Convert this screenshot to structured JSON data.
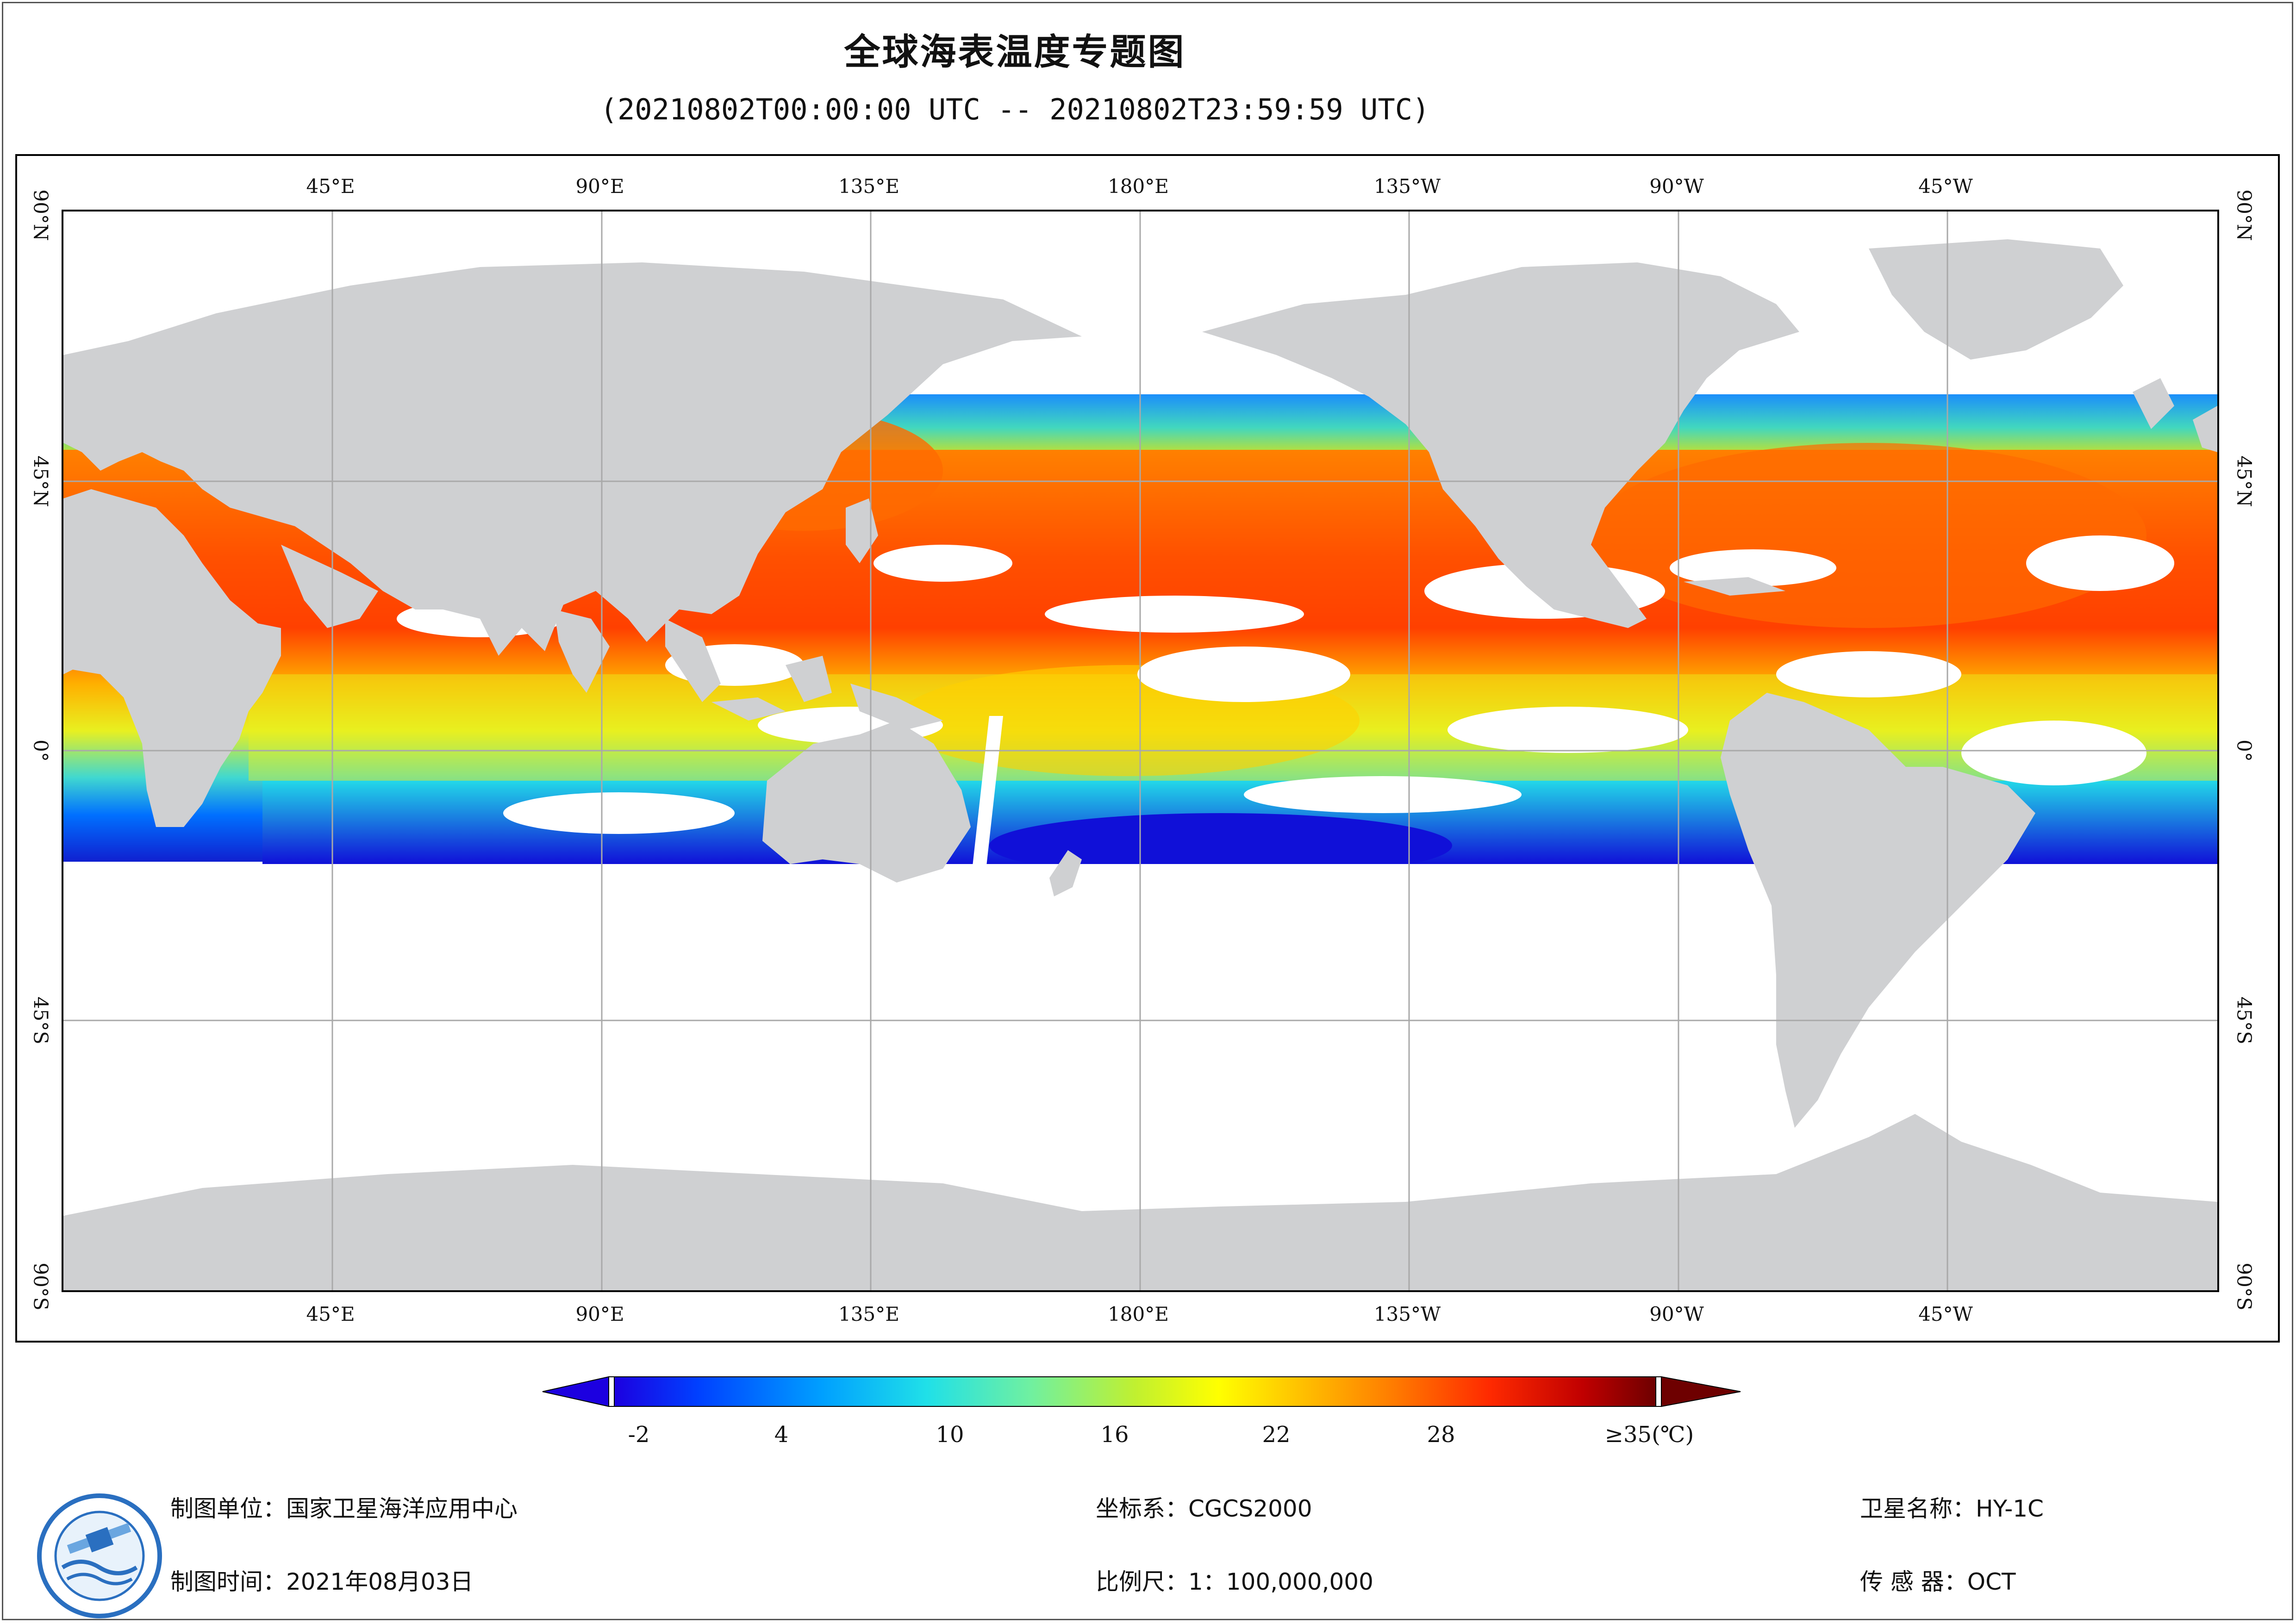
{
  "title": "全球海表温度专题图",
  "time_range": "(20210802T00:00:00 UTC -- 20210802T23:59:59 UTC)",
  "grid_labels": {
    "top": [
      "45°E",
      "90°E",
      "135°E",
      "180°E",
      "135°W",
      "90°W",
      "45°W"
    ],
    "bottom": [
      "45°E",
      "90°E",
      "135°E",
      "180°E",
      "135°W",
      "90°W",
      "45°W"
    ],
    "left": [
      "90°N",
      "45°N",
      "0°",
      "45°S",
      "90°S"
    ],
    "right": [
      "90°N",
      "45°N",
      "0°",
      "45°S",
      "90°S"
    ]
  },
  "legend": {
    "ticks": [
      "-2",
      "4",
      "10",
      "16",
      "22",
      "28",
      "≥35(℃)"
    ],
    "min_value": -2,
    "max_value": 35,
    "unit": "℃",
    "colors": [
      "#1c00e0",
      "#0050ff",
      "#00a8ff",
      "#22e0e0",
      "#66f0a0",
      "#b8f040",
      "#ffff00",
      "#ffc000",
      "#ff8000",
      "#ff3000",
      "#d00000",
      "#7a0000"
    ]
  },
  "info": {
    "producer": "制图单位：国家卫星海洋应用中心",
    "date": "制图时间：2021年08月03日",
    "crs": "坐标系：CGCS2000",
    "scale": "比例尺：1：100,000,000",
    "satellite": "卫星名称：HY-1C",
    "sensor": "传 感 器：OCT"
  },
  "colors": {
    "land": "#cfd0d2",
    "gridline": "#a9a9a9",
    "cloud_gap": "#ffffff"
  }
}
